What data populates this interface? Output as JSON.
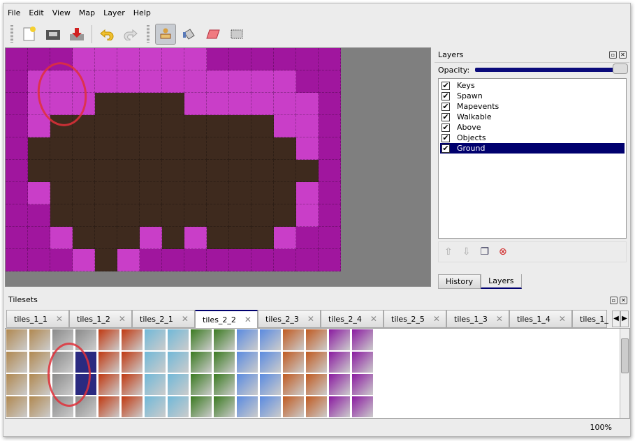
{
  "menu": [
    "File",
    "Edit",
    "View",
    "Map",
    "Layer",
    "Help"
  ],
  "toolbar": {
    "icons": [
      "new-file-icon",
      "open-icon",
      "save-icon",
      "undo-icon",
      "redo-icon",
      "stamp-brush-icon",
      "bucket-fill-icon",
      "eraser-icon",
      "rect-select-icon"
    ],
    "active": "stamp-brush-icon"
  },
  "map": {
    "colors": {
      "P": "#a0169e",
      "L": "#c93ec8",
      "D": "#3e2a1e"
    },
    "rows": [
      "PPPLLLLLLPPPPPP",
      "PLLLLLLLLLLLLPP",
      "PLLLDDDDLLLLLLP",
      "PLDDDDDDDDDDLLP",
      "PDDDDDDDDDDDDLP",
      "PDDDDDDDDDDDDDP",
      "PLDDDDDDDDDDDLP",
      "PPDDDDDDDDDDDLP",
      "PPLDDDLDLDDDLPP",
      "PPPLDLPPPPPPPPP"
    ]
  },
  "layers_panel": {
    "title": "Layers",
    "opacity_label": "Opacity:",
    "opacity": 1.0,
    "layers": [
      {
        "name": "Keys",
        "visible": true
      },
      {
        "name": "Spawn",
        "visible": true
      },
      {
        "name": "Mapevents",
        "visible": true
      },
      {
        "name": "Walkable",
        "visible": true
      },
      {
        "name": "Above",
        "visible": true
      },
      {
        "name": "Objects",
        "visible": true
      },
      {
        "name": "Ground",
        "visible": true,
        "selected": true
      }
    ],
    "check": "✔"
  },
  "dock_tabs": [
    "History",
    "Layers"
  ],
  "tilesets": {
    "title": "Tilesets",
    "tabs": [
      "tiles_1_1",
      "tiles_1_2",
      "tiles_2_1",
      "tiles_2_2",
      "tiles_2_3",
      "tiles_2_4",
      "tiles_2_5",
      "tiles_1_3",
      "tiles_1_4",
      "tiles_1_"
    ],
    "active": 3,
    "tile_colors": [
      "#b08850",
      "#8a8a8a",
      "#c03810",
      "#70b8d8",
      "#3a7a20",
      "#5a8ae0",
      "#c05a20",
      "#8a1aa0"
    ]
  },
  "status": {
    "zoom": "100%"
  }
}
